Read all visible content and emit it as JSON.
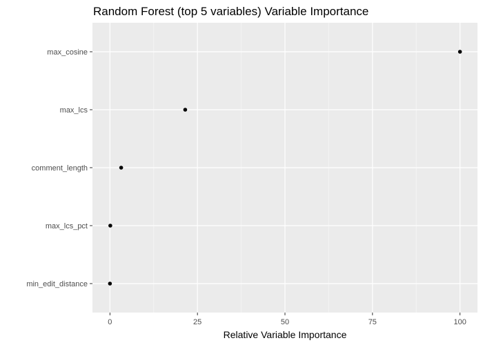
{
  "chart_data": {
    "type": "scatter",
    "title": "Random Forest (top 5 variables) Variable Importance",
    "xlabel": "Relative Variable Importance",
    "ylabel": "",
    "xlim": [
      -5,
      105
    ],
    "x_ticks": [
      0,
      25,
      50,
      75,
      100
    ],
    "x_tick_labels": [
      "0",
      "25",
      "50",
      "75",
      "100"
    ],
    "categories": [
      "max_cosine",
      "max_lcs",
      "comment_length",
      "max_lcs_pct",
      "min_edit_distance"
    ],
    "values": [
      100,
      21.5,
      3.2,
      0.1,
      0
    ],
    "grid": true,
    "legend": "none",
    "colors": {
      "panel_background": "#EBEBEB",
      "grid_major": "#FFFFFF",
      "grid_minor": "#F5F5F5",
      "point": "#000000",
      "tick_text": "#4D4D4D",
      "tick_mark": "#333333"
    }
  }
}
